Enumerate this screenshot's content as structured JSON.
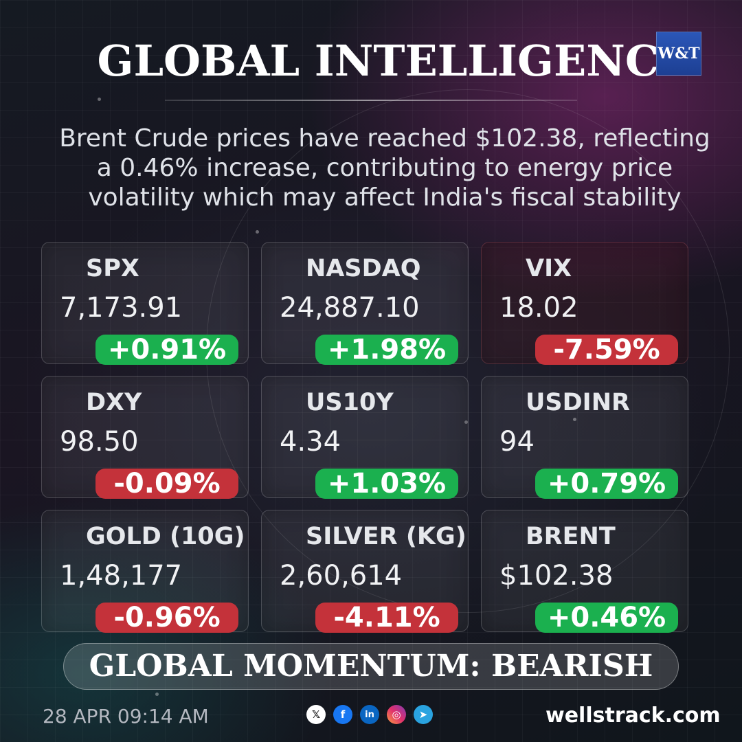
{
  "header": {
    "title": "GLOBAL INTELLIGENCE",
    "logo_text": "W&T"
  },
  "summary": {
    "line1": "Brent Crude prices have reached $102.38, reflecting",
    "line2": "a 0.46% increase, contributing to energy price",
    "line3": "volatility which may affect India's fiscal stability"
  },
  "cards": [
    {
      "label": "SPX",
      "value": "7,173.91",
      "change": "+0.91%",
      "direction": "up"
    },
    {
      "label": "NASDAQ",
      "value": "24,887.10",
      "change": "+1.98%",
      "direction": "up"
    },
    {
      "label": "VIX",
      "value": "18.02",
      "change": "-7.59%",
      "direction": "down"
    },
    {
      "label": "DXY",
      "value": "98.50",
      "change": "-0.09%",
      "direction": "down"
    },
    {
      "label": "US10Y",
      "value": "4.34",
      "change": "+1.03%",
      "direction": "up"
    },
    {
      "label": "USDINR",
      "value": "94",
      "change": "+0.79%",
      "direction": "up"
    },
    {
      "label": "GOLD (10G)",
      "value": "1,48,177",
      "change": "-0.96%",
      "direction": "down"
    },
    {
      "label": "SILVER (KG)",
      "value": "2,60,614",
      "change": "-4.11%",
      "direction": "down"
    },
    {
      "label": "BRENT",
      "value": "$102.38",
      "change": "+0.46%",
      "direction": "up"
    }
  ],
  "momentum": {
    "text": "GLOBAL MOMENTUM: BEARISH"
  },
  "footer": {
    "timestamp": "28 APR 09:14 AM",
    "website": "wellstrack.com",
    "social_icons": [
      "x-icon",
      "facebook-icon",
      "linkedin-icon",
      "instagram-icon",
      "telegram-icon"
    ]
  },
  "colors": {
    "up": "#1bb04f",
    "down": "#c4323a",
    "logo": "#2b57b8"
  }
}
